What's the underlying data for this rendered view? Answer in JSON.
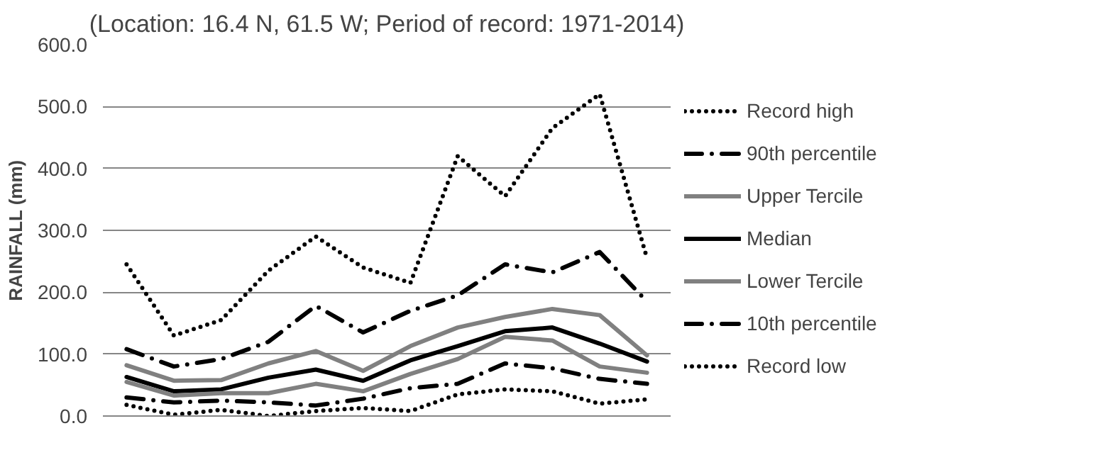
{
  "chart_data": {
    "type": "line",
    "title": "(Location: 16.4 N, 61.5 W; Period of record: 1971-2014)",
    "ylabel": "RAINFALL (mm)",
    "categories": [
      null,
      null,
      null,
      null,
      null,
      null,
      null,
      null,
      null,
      null,
      null,
      null
    ],
    "ylim": [
      0,
      600
    ],
    "yticks": [
      {
        "value": 0,
        "label": "0.0"
      },
      {
        "value": 100,
        "label": "100.0"
      },
      {
        "value": 200,
        "label": "200.0"
      },
      {
        "value": 300,
        "label": "300.0"
      },
      {
        "value": 400,
        "label": "400.0"
      },
      {
        "value": 500,
        "label": "500.0"
      },
      {
        "value": 600,
        "label": "600.0"
      }
    ],
    "grid": "y",
    "legend": "right",
    "series": [
      {
        "name": "Record high",
        "color": "#000000",
        "line_style": "dotted",
        "values": [
          245,
          130,
          155,
          235,
          290,
          240,
          215,
          420,
          355,
          465,
          520,
          255
        ]
      },
      {
        "name": "90th percentile",
        "color": "#000000",
        "line_style": "dashed",
        "values": [
          108,
          80,
          92,
          120,
          178,
          135,
          170,
          195,
          245,
          232,
          265,
          185
        ]
      },
      {
        "name": "Upper Tercile",
        "color": "#808080",
        "line_style": "solid",
        "values": [
          82,
          57,
          58,
          85,
          105,
          73,
          113,
          143,
          160,
          173,
          163,
          98
        ]
      },
      {
        "name": "Median",
        "color": "#000000",
        "line_style": "solid",
        "values": [
          63,
          40,
          43,
          62,
          75,
          57,
          90,
          113,
          137,
          143,
          117,
          88
        ]
      },
      {
        "name": "Lower Tercile",
        "color": "#808080",
        "line_style": "solid",
        "values": [
          55,
          33,
          37,
          37,
          52,
          40,
          68,
          92,
          128,
          122,
          80,
          70
        ]
      },
      {
        "name": "10th percentile",
        "color": "#000000",
        "line_style": "dashed",
        "values": [
          30,
          22,
          25,
          22,
          17,
          28,
          45,
          52,
          85,
          77,
          60,
          52
        ]
      },
      {
        "name": "Record low",
        "color": "#000000",
        "line_style": "dotted",
        "values": [
          18,
          2,
          10,
          0,
          8,
          13,
          8,
          35,
          43,
          40,
          20,
          27
        ]
      }
    ]
  }
}
